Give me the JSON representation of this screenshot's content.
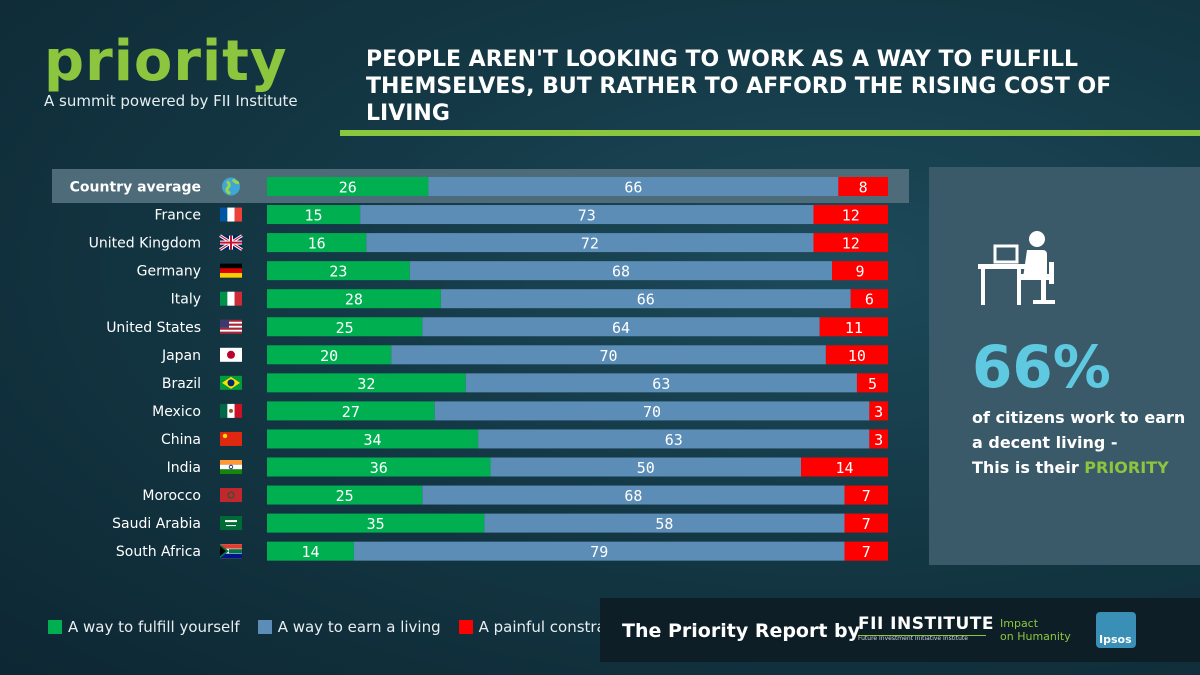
{
  "brand": {
    "logo_text": "priority",
    "tagline": "A summit powered by FII Institute",
    "accent_color": "#8cc63f"
  },
  "headline": "PEOPLE AREN'T LOOKING TO WORK AS A WAY TO FULFILL THEMSELVES, BUT RATHER TO AFFORD THE RISING COST OF LIVING",
  "side_panel": {
    "icon": "person-at-desk-icon",
    "percent": "66%",
    "text_line": "of citizens work to earn a decent living -",
    "text_prefix": "This is their ",
    "text_accent": "PRIORITY"
  },
  "legend": [
    {
      "label": "A way to fulfill yourself",
      "color": "#00b050"
    },
    {
      "label": "A way to earn a living",
      "color": "#5b8db6"
    },
    {
      "label": "A painful constraint",
      "color": "#ff0000"
    }
  ],
  "footer": {
    "report_label": "The Priority Report by",
    "fii_name": "FII INSTITUTE",
    "fii_sub": "Future Investment Initiative Institute",
    "impact_line1": "Impact",
    "impact_line2": "on Humanity",
    "ipsos": "Ipsos"
  },
  "chart_data": {
    "type": "bar",
    "orientation": "horizontal",
    "stacked": true,
    "xlim": [
      0,
      100
    ],
    "categories": [
      "Country average",
      "France",
      "United Kingdom",
      "Germany",
      "Italy",
      "United States",
      "Japan",
      "Brazil",
      "Mexico",
      "China",
      "India",
      "Morocco",
      "Saudi Arabia",
      "South Africa"
    ],
    "flags": [
      "globe",
      "france",
      "united-kingdom",
      "germany",
      "italy",
      "united-states",
      "japan",
      "brazil",
      "mexico",
      "china",
      "india",
      "morocco",
      "saudi-arabia",
      "south-africa"
    ],
    "series": [
      {
        "name": "A way to fulfill yourself",
        "color": "#00b050",
        "values": [
          26,
          15,
          16,
          23,
          28,
          25,
          20,
          32,
          27,
          34,
          36,
          25,
          35,
          14
        ]
      },
      {
        "name": "A way to earn a living",
        "color": "#5b8db6",
        "values": [
          66,
          73,
          72,
          68,
          66,
          64,
          70,
          63,
          70,
          63,
          50,
          68,
          58,
          79
        ]
      },
      {
        "name": "A painful constraint",
        "color": "#ff0000",
        "values": [
          8,
          12,
          12,
          9,
          6,
          11,
          10,
          5,
          3,
          3,
          14,
          7,
          7,
          7
        ]
      }
    ],
    "highlight_category": "Country average"
  }
}
